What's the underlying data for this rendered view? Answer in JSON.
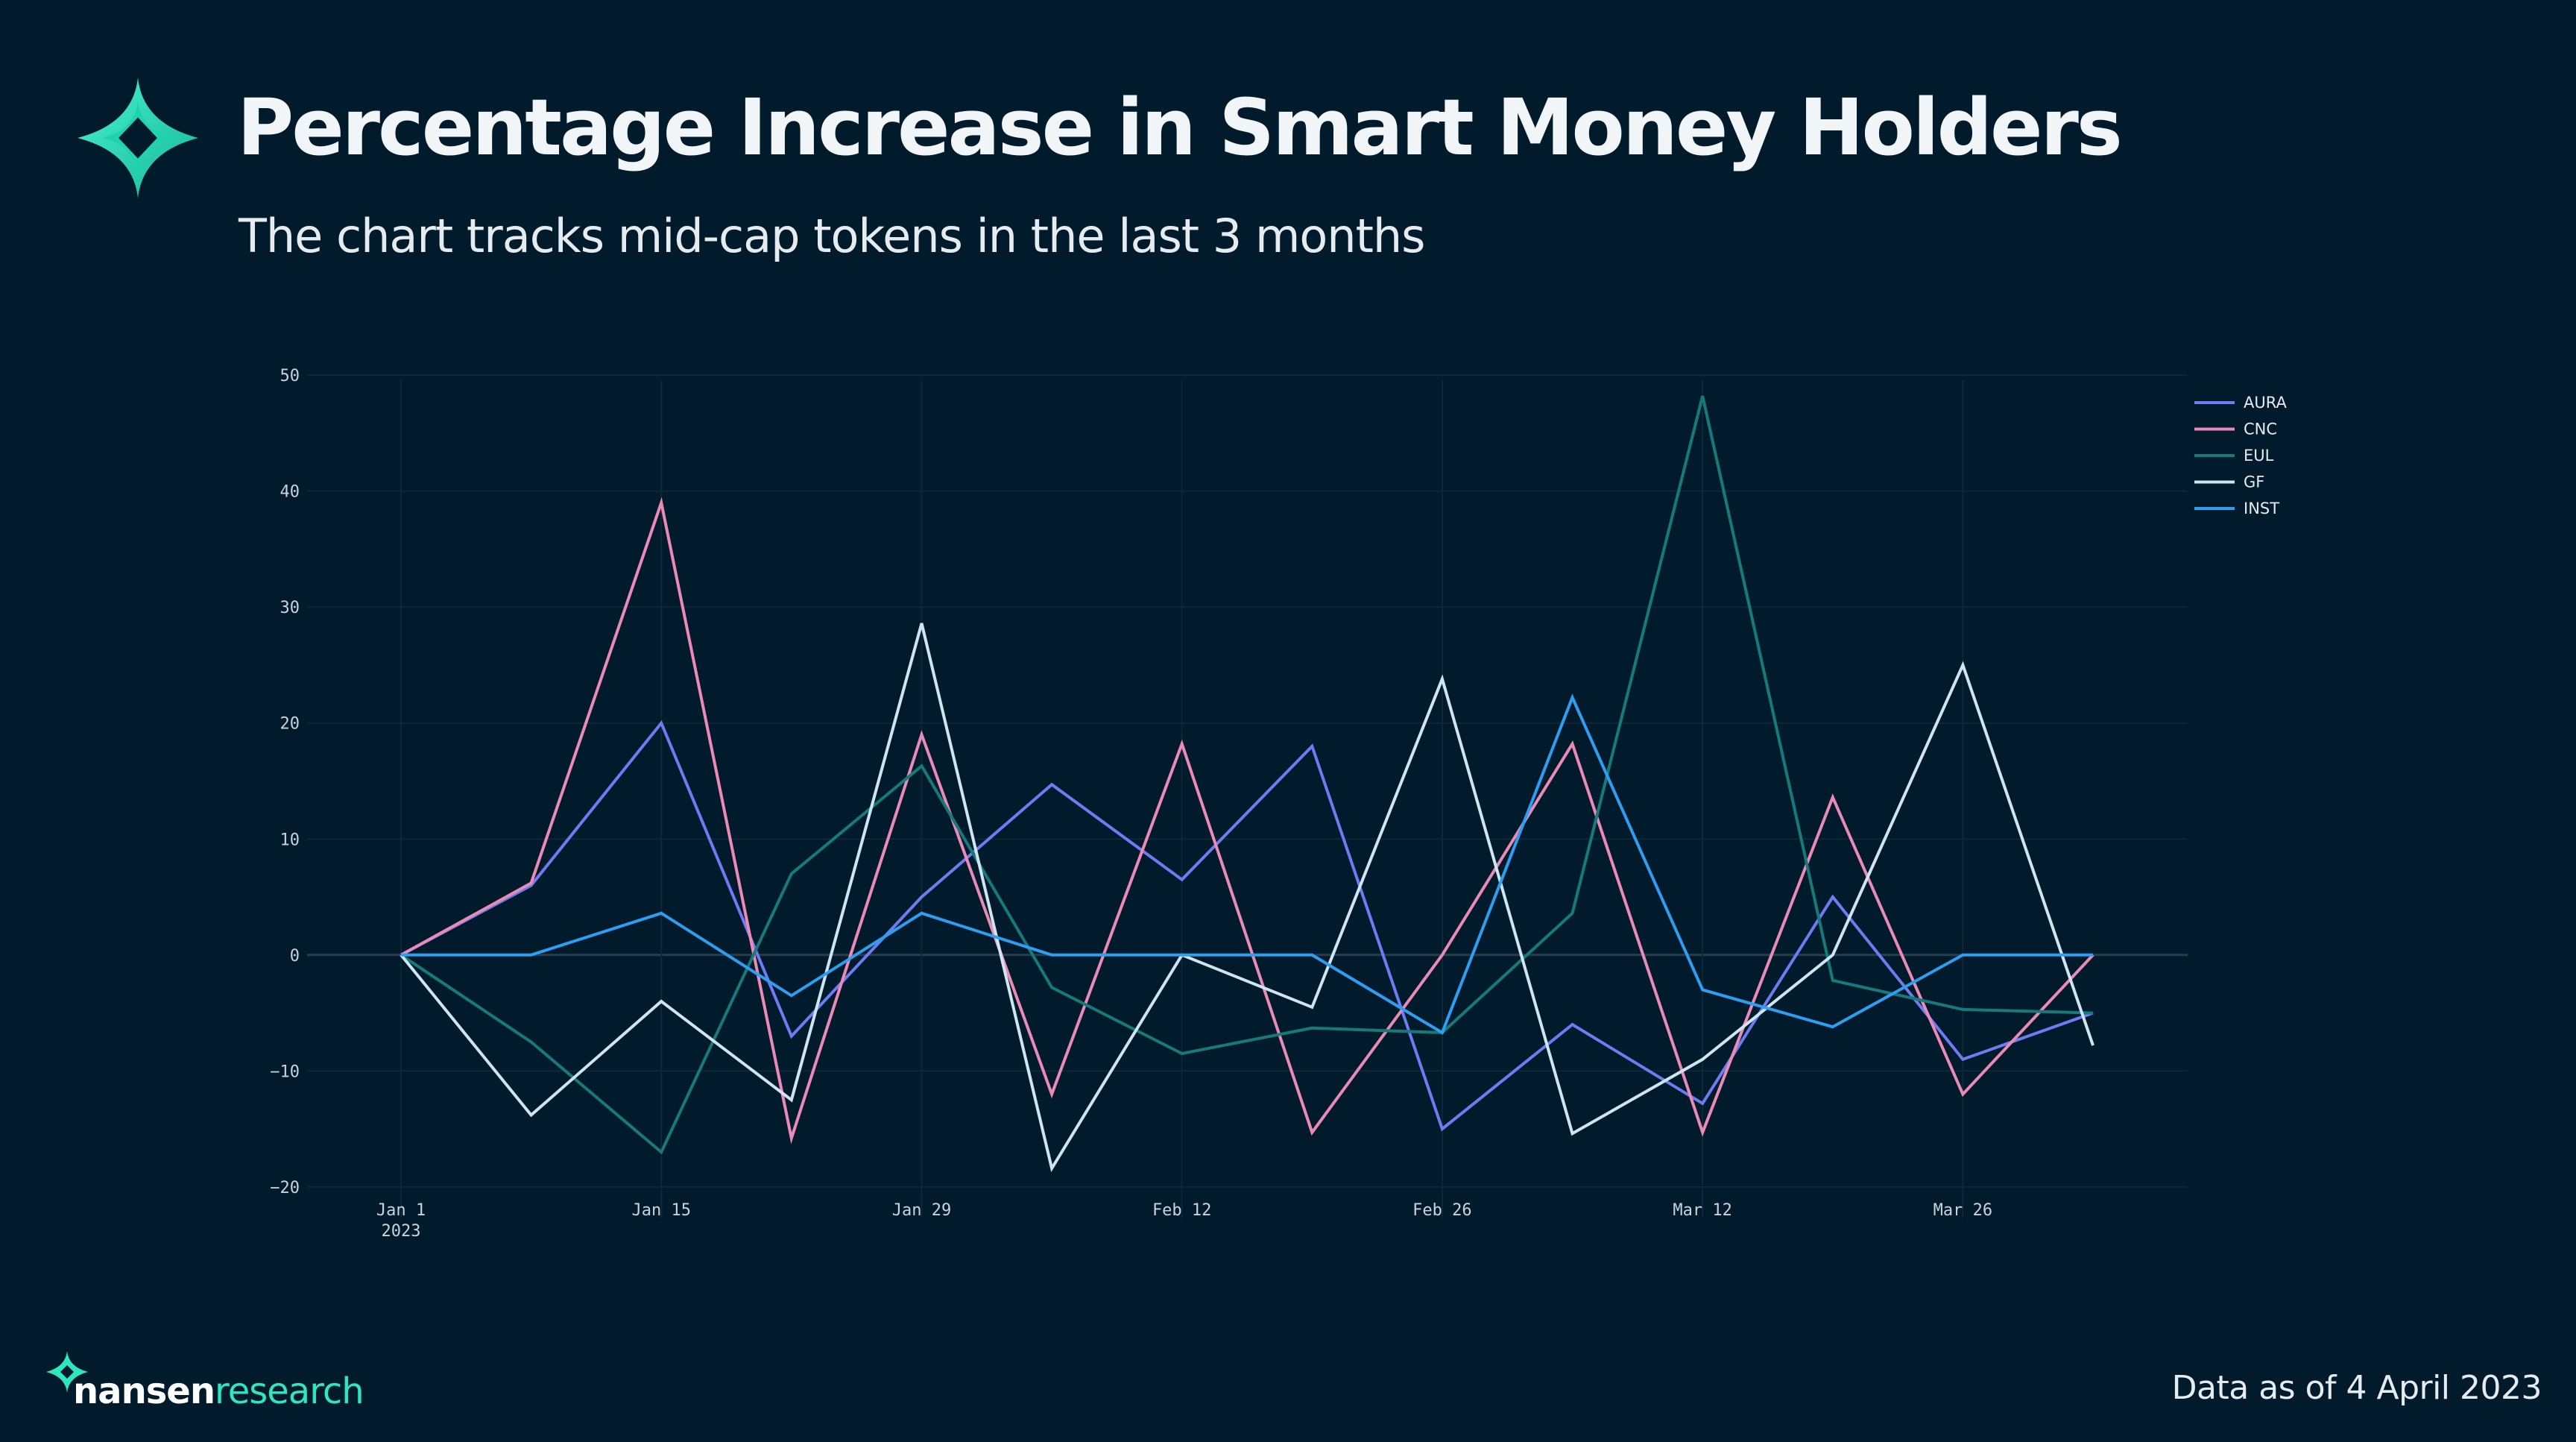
{
  "header": {
    "title": "Percentage Increase in Smart Money Holders",
    "subtitle": "The chart tracks mid-cap tokens in the last 3 months"
  },
  "footer": {
    "brand_primary": "nansen",
    "brand_secondary": "research",
    "note": "Data as of 4 April 2023"
  },
  "colors": {
    "background": "#011a2c",
    "accent": "#2ee6c0",
    "grid": "#0f2738",
    "zero_line": "#2a3d4d"
  },
  "chart_data": {
    "type": "line",
    "title": "Percentage Increase in Smart Money Holders",
    "xlabel": "",
    "ylabel": "",
    "ylim": [
      -22,
      52
    ],
    "y_ticks": [
      -20,
      -10,
      0,
      10,
      20,
      30,
      40,
      50
    ],
    "y_tick_labels": [
      "−20",
      "−10",
      "0",
      "10",
      "20",
      "30",
      "40",
      "50"
    ],
    "x_tick_labels": [
      {
        "label": "Jan 1",
        "sub": "2023",
        "index": 0
      },
      {
        "label": "Jan 15",
        "sub": "",
        "index": 2
      },
      {
        "label": "Jan 29",
        "sub": "",
        "index": 4
      },
      {
        "label": "Feb 12",
        "sub": "",
        "index": 6
      },
      {
        "label": "Feb 26",
        "sub": "",
        "index": 8
      },
      {
        "label": "Mar 12",
        "sub": "",
        "index": 10
      },
      {
        "label": "Mar 26",
        "sub": "",
        "index": 12
      }
    ],
    "x": [
      "Jan 1",
      "Jan 8",
      "Jan 15",
      "Jan 22",
      "Jan 29",
      "Feb 5",
      "Feb 12",
      "Feb 19",
      "Feb 26",
      "Mar 5",
      "Mar 12",
      "Mar 19",
      "Mar 26",
      "Apr 2"
    ],
    "grid": true,
    "legend_position": "top-right",
    "series": [
      {
        "name": "AURA",
        "color": "#6f7bf0",
        "values": [
          0,
          6,
          20,
          -7,
          5,
          14.7,
          6.5,
          18,
          -15,
          -6,
          -12.8,
          5,
          -9,
          -5
        ]
      },
      {
        "name": "CNC",
        "color": "#e98bb5",
        "values": [
          0,
          6.2,
          39,
          -15.8,
          19,
          -12,
          18.2,
          -15.3,
          0,
          18.2,
          -15.3,
          13.6,
          -12,
          0
        ]
      },
      {
        "name": "EUL",
        "color": "#167a7a",
        "values": [
          0,
          -7.5,
          -17,
          7,
          16.3,
          -2.8,
          -8.5,
          -6.3,
          -6.7,
          3.6,
          48.2,
          -2.2,
          -4.7,
          -5
        ]
      },
      {
        "name": "GF",
        "color": "#cfe6f2",
        "values": [
          0,
          -13.8,
          -4,
          -12.5,
          28.6,
          -18.4,
          0,
          -4.5,
          23.8,
          -15.4,
          -9,
          0,
          25,
          -7.8
        ]
      },
      {
        "name": "INST",
        "color": "#2e9ef0",
        "values": [
          0,
          0,
          3.6,
          -3.5,
          3.6,
          0,
          0,
          0,
          -6.7,
          22.2,
          -3,
          -6.2,
          0,
          0
        ]
      }
    ]
  }
}
